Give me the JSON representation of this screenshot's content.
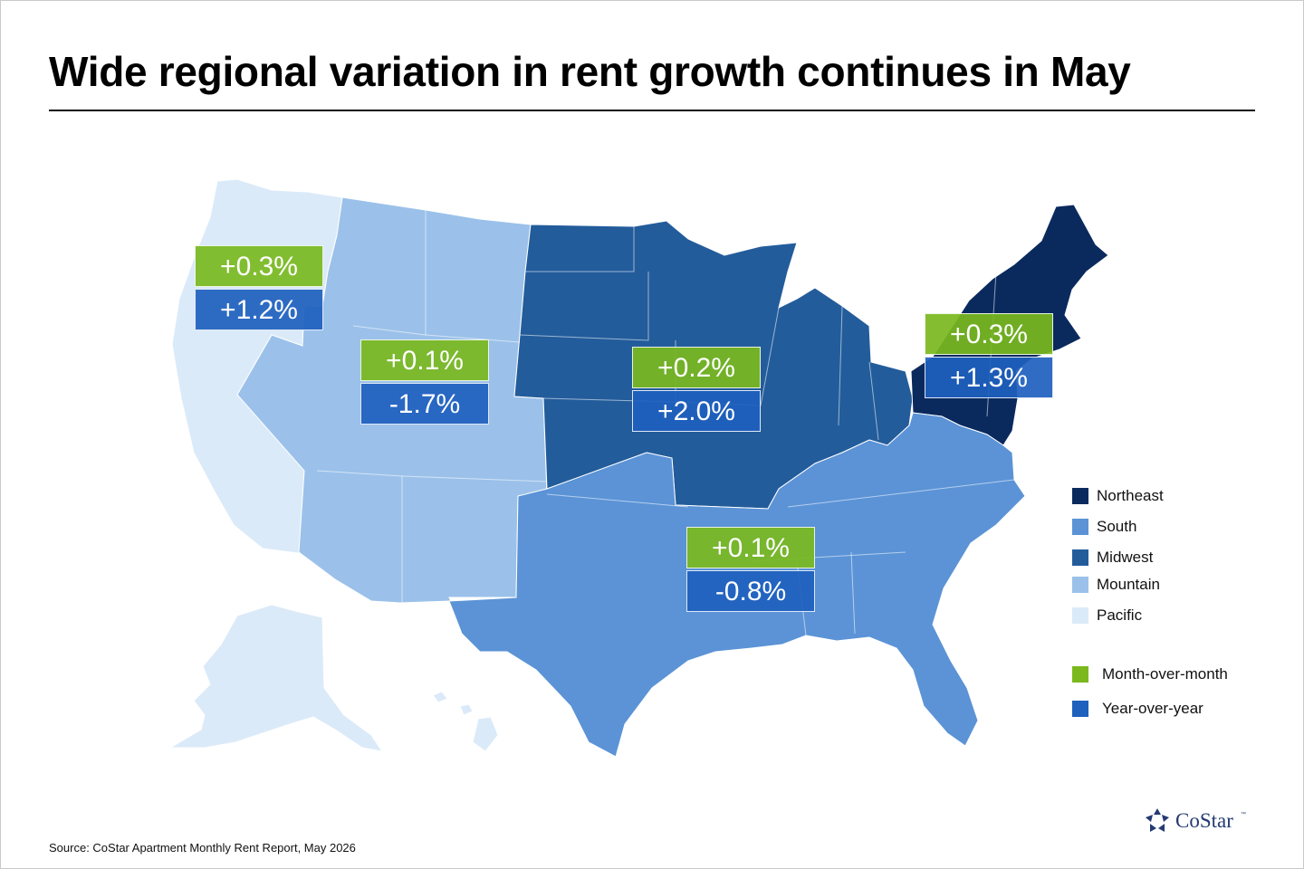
{
  "title": "Wide regional variation in rent growth continues in May",
  "source": "Source: CoStar Apartment Monthly Rent Report, May 2026",
  "logo": {
    "text": "CoStar",
    "tm": "™"
  },
  "colors": {
    "northeast": "#0a2a5e",
    "south": "#5b93d6",
    "midwest": "#235c9b",
    "mountain": "#9bc1ea",
    "pacific": "#dbeaf8",
    "month_over_month": "#7ab81e",
    "year_over_year": "#1e60be"
  },
  "regions": [
    {
      "id": "pacific",
      "name": "Pacific",
      "mom": "+0.3%",
      "yoy": "+1.2%"
    },
    {
      "id": "mountain",
      "name": "Mountain",
      "mom": "+0.1%",
      "yoy": "-1.7%"
    },
    {
      "id": "midwest",
      "name": "Midwest",
      "mom": "+0.2%",
      "yoy": "+2.0%"
    },
    {
      "id": "south",
      "name": "South",
      "mom": "+0.1%",
      "yoy": "-0.8%"
    },
    {
      "id": "northeast",
      "name": "Northeast",
      "mom": "+0.3%",
      "yoy": "+1.3%"
    }
  ],
  "legend": {
    "regions": [
      "Northeast",
      "South",
      "Midwest",
      "Mountain",
      "Pacific"
    ],
    "metrics": [
      "Month-over-month",
      "Year-over-year"
    ]
  }
}
